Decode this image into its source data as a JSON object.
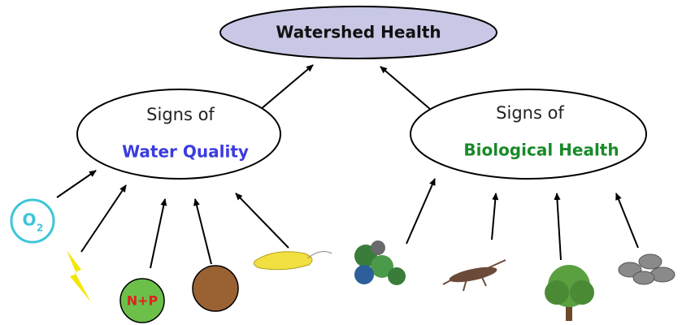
{
  "root": {
    "label": "Watershed Health"
  },
  "nodes": [
    {
      "prefix": "Signs of",
      "label": "Water Quality"
    },
    {
      "prefix": "Signs of",
      "label": "Biological Health"
    }
  ],
  "icons": {
    "oxygen": {
      "symbol": "O",
      "subscript": "2"
    },
    "nutrients": "N+P"
  }
}
